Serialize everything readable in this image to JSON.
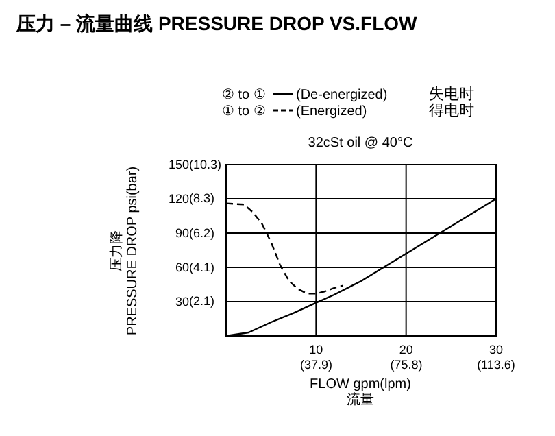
{
  "chart_data": {
    "type": "line",
    "title": "压力 – 流量曲线 PRESSURE DROP VS.FLOW",
    "subtitle": "32cSt oil @ 40°C",
    "xlabel": "FLOW gpm(lpm)\n流量",
    "ylabel": "压力降\nPRESSURE DROP psi(bar)",
    "xlim": [
      0,
      30
    ],
    "ylim": [
      0,
      150
    ],
    "xticks": [
      10,
      20,
      30
    ],
    "x2lim": [
      0,
      113.6
    ],
    "x2ticks": [
      {
        "value": 37.9,
        "label": "(37.9)"
      },
      {
        "value": 75.8,
        "label": "(75.8)"
      },
      {
        "value": 113.6,
        "label": "(113.6)"
      }
    ],
    "yticks": [
      30,
      60,
      90,
      120,
      150
    ],
    "y2lim": [
      0,
      10.3
    ],
    "y2ticks": [
      {
        "value": 2.1,
        "label": "(2.1)"
      },
      {
        "value": 4.1,
        "label": "(4.1)"
      },
      {
        "value": 6.2,
        "label": "(6.2)"
      },
      {
        "value": 8.3,
        "label": "(8.3)"
      },
      {
        "value": 10.3,
        "label": "(10.3)"
      }
    ],
    "grid": true,
    "legend": "top",
    "annotations": [
      "② to ①",
      "① to ②",
      "失电时",
      "得电时"
    ],
    "series": [
      {
        "name": "(De-energized)",
        "color": "#000000",
        "line_style": "solid",
        "x": [
          0,
          2.5,
          5,
          7.5,
          10,
          12,
          15,
          17.5,
          20,
          22.5,
          25,
          27.5,
          30
        ],
        "values": [
          0,
          3,
          12,
          20,
          29,
          36,
          48,
          60,
          72,
          84,
          96,
          108,
          120
        ]
      },
      {
        "name": "(Energized)",
        "color": "#000000",
        "line_style": "dashed",
        "x": [
          0,
          2,
          3,
          4,
          5,
          6,
          7,
          8,
          9,
          10,
          11,
          12,
          13
        ],
        "values": [
          116,
          115,
          108,
          98,
          82,
          62,
          48,
          41,
          37,
          37,
          39,
          42,
          44
        ]
      }
    ]
  }
}
